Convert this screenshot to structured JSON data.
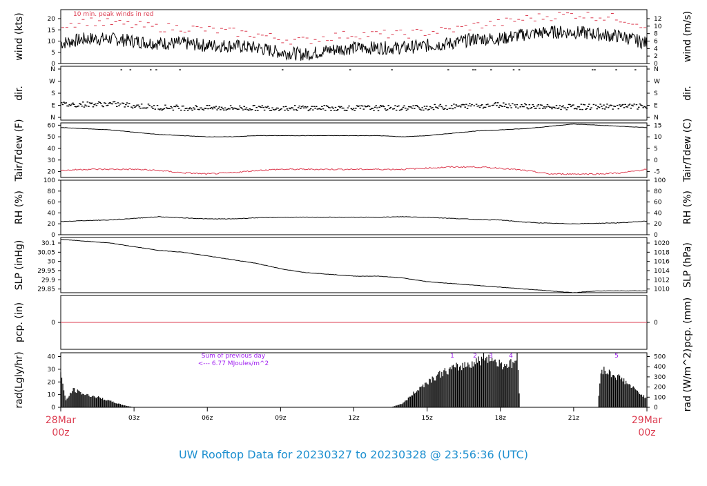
{
  "title": "UW Rooftop Data for 20230327  to  20230328 @ 23:56:36  (UTC)",
  "colors": {
    "line": "#000000",
    "dew": "#dc3c50",
    "note": "#dc3c50",
    "rad_note": "#a020f0",
    "title": "#1e90d0",
    "date": "#dc3c50"
  },
  "x_axis": {
    "start_label": [
      "28Mar",
      "00z"
    ],
    "end_label": [
      "29Mar",
      "00z"
    ],
    "ticks": [
      "03z",
      "06z",
      "09z",
      "12z",
      "15z",
      "18z",
      "21z"
    ]
  },
  "chart_data": [
    {
      "type": "line",
      "ylabel": "wind (kts)",
      "ylabel_right": "wind (m/s)",
      "yticks": [
        0,
        5,
        10,
        15,
        20
      ],
      "yticks_right": [
        0,
        2,
        4,
        6,
        8,
        10,
        12
      ],
      "ylim": [
        0,
        24
      ],
      "annotation": "10 min. peak winds in red",
      "x_hours": [
        0,
        1,
        2,
        3,
        4,
        5,
        6,
        7,
        8,
        9,
        10,
        11,
        12,
        13,
        14,
        15,
        16,
        17,
        18,
        19,
        20,
        21,
        22,
        23,
        24
      ],
      "series": [
        {
          "values": [
            9,
            11,
            11,
            10,
            9,
            9,
            8,
            8,
            7,
            5,
            4,
            6,
            7,
            7,
            7,
            8,
            9,
            11,
            11,
            13,
            14,
            14,
            13,
            12,
            9
          ]
        },
        {
          "values": [
            17,
            19,
            18,
            17,
            16,
            16,
            15,
            14,
            13,
            11,
            10,
            12,
            13,
            13,
            13,
            14,
            15,
            17,
            18,
            20,
            21,
            22,
            21,
            20,
            17
          ]
        }
      ]
    },
    {
      "type": "scatter",
      "ylabel": "dir.",
      "ylabel_right": "dir.",
      "categories": [
        "N",
        "W",
        "S",
        "E",
        "N"
      ],
      "ylim": [
        0,
        360
      ],
      "x_hours": [
        0,
        2,
        4,
        6,
        8,
        10,
        12,
        14,
        16,
        18,
        20,
        22,
        24
      ],
      "values": [
        95,
        100,
        75,
        70,
        70,
        70,
        70,
        70,
        80,
        95,
        75,
        80,
        80
      ]
    },
    {
      "type": "line",
      "ylabel": "Tair/Tdew (F)",
      "ylabel_right": "Tair/Tdew (C)",
      "yticks": [
        20,
        30,
        40,
        50,
        60
      ],
      "yticks_right": [
        -5,
        0,
        5,
        10,
        15
      ],
      "ylim": [
        15,
        62
      ],
      "x_hours": [
        0,
        1,
        2,
        3,
        4,
        5,
        6,
        7,
        8,
        9,
        10,
        11,
        12,
        13,
        14,
        15,
        16,
        17,
        18,
        19,
        20,
        21,
        22,
        23,
        24
      ],
      "series": [
        {
          "name": "Tair",
          "values": [
            58,
            57,
            56,
            54,
            52,
            51,
            50,
            50,
            51,
            51,
            51,
            51,
            51,
            51,
            50,
            51,
            53,
            55,
            56,
            57,
            59,
            61,
            60,
            59,
            58
          ]
        },
        {
          "name": "Tdew",
          "values": [
            21,
            22,
            22,
            22,
            21,
            19,
            18,
            19,
            21,
            22,
            22,
            22,
            22,
            22,
            22,
            23,
            24,
            24,
            23,
            21,
            18,
            18,
            18,
            19,
            22
          ]
        }
      ]
    },
    {
      "type": "line",
      "ylabel": "RH (%)",
      "ylabel_right": "RH (%)",
      "yticks": [
        0,
        20,
        40,
        60,
        80,
        100
      ],
      "yticks_right": [
        0,
        20,
        40,
        60,
        80,
        100
      ],
      "ylim": [
        0,
        100
      ],
      "x_hours": [
        0,
        1,
        2,
        3,
        4,
        5,
        6,
        7,
        8,
        9,
        10,
        11,
        12,
        13,
        14,
        15,
        16,
        17,
        18,
        19,
        20,
        21,
        22,
        23,
        24
      ],
      "values": [
        24,
        26,
        27,
        30,
        33,
        31,
        29,
        29,
        31,
        32,
        32,
        32,
        32,
        32,
        33,
        32,
        30,
        28,
        27,
        23,
        21,
        20,
        21,
        22,
        25
      ]
    },
    {
      "type": "line",
      "ylabel": "SLP (inHg)",
      "ylabel_right": "SLP (hPa)",
      "yticks": [
        29.85,
        29.9,
        29.95,
        30.0,
        30.05,
        30.1
      ],
      "yticks_right": [
        1010,
        1012,
        1014,
        1016,
        1018,
        1020
      ],
      "ylim": [
        29.83,
        30.13
      ],
      "x_hours": [
        0,
        1,
        2,
        3,
        4,
        5,
        6,
        7,
        8,
        9,
        10,
        11,
        12,
        13,
        14,
        15,
        16,
        17,
        18,
        19,
        20,
        21,
        22,
        23,
        24
      ],
      "values": [
        30.12,
        30.11,
        30.1,
        30.08,
        30.06,
        30.05,
        30.03,
        30.01,
        29.99,
        29.96,
        29.94,
        29.93,
        29.92,
        29.92,
        29.91,
        29.89,
        29.88,
        29.87,
        29.86,
        29.85,
        29.84,
        29.83,
        29.84,
        29.84,
        29.84
      ]
    },
    {
      "type": "line",
      "ylabel": "pcp. (in)",
      "ylabel_right": "pcp. (mm)",
      "yticks": [
        0
      ],
      "yticks_right": [
        0
      ],
      "ylim": [
        -1,
        1
      ],
      "x_hours": [
        0,
        24
      ],
      "values": [
        0,
        0
      ]
    },
    {
      "type": "area",
      "ylabel": "rad(Lgly/hr)",
      "ylabel_right": "rad (W/m^2)",
      "yticks": [
        0,
        10,
        20,
        30,
        40
      ],
      "yticks_right": [
        0,
        100,
        200,
        300,
        400,
        500
      ],
      "ylim": [
        0,
        43
      ],
      "annotation_lines": [
        "Sum of previous day",
        "<--- 6.77 MJoules/m^2"
      ],
      "markers": [
        "1",
        "2",
        "3",
        "4",
        "5"
      ],
      "x_hours": [
        0,
        0.2,
        0.5,
        1.0,
        1.5,
        2.0,
        2.5,
        3.0,
        13.5,
        14.0,
        14.5,
        15.0,
        15.5,
        16.0,
        16.5,
        17.0,
        17.5,
        18.0,
        18.5,
        18.7,
        18.8,
        22.0,
        22.1,
        22.5,
        23.0,
        23.5,
        24.0
      ],
      "values": [
        28,
        5,
        14,
        10,
        8,
        5,
        2,
        0,
        0,
        3,
        12,
        20,
        26,
        30,
        33,
        36,
        40,
        34,
        34,
        40,
        0,
        0,
        30,
        27,
        22,
        14,
        7
      ]
    }
  ]
}
